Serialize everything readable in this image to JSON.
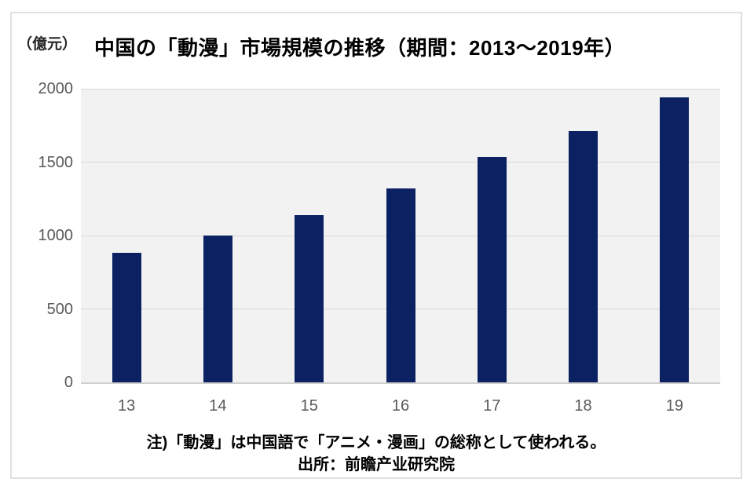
{
  "chart": {
    "unit_label": "（億元）",
    "title": "中国の「動漫」市場規模の推移（期間：2013～2019年）",
    "note": "注)「動漫」は中国語で「アニメ・漫画」の総称として使われる。",
    "source": "出所：前瞻产业研究院"
  },
  "chart_data": {
    "type": "bar",
    "title": "中国の「動漫」市場規模の推移（期間：2013～2019年）",
    "categories": [
      "13",
      "14",
      "15",
      "16",
      "17",
      "18",
      "19"
    ],
    "values": [
      882,
      1000,
      1141,
      1320,
      1536,
      1712,
      1941
    ],
    "xlabel": "",
    "ylabel": "（億元）",
    "ylim": [
      0,
      2000
    ],
    "yticks": [
      0,
      500,
      1000,
      1500,
      2000
    ],
    "grid": true,
    "legend_position": "none",
    "bar_color": "#0b2161",
    "plot_background": "#f2f2f2",
    "gridline_color": "#d9d9d9",
    "axis_line_color": "#cfcfcf",
    "tick_label_color": "#595959",
    "note": "注)「動漫」は中国語で「アニメ・漫画」の総称として使われる。",
    "source": "出所：前瞻产业研究院"
  }
}
